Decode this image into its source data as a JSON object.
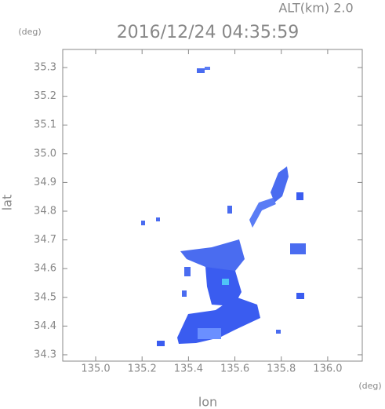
{
  "chart_data": {
    "type": "map",
    "title": "2016/12/24 04:35:59",
    "subtitle": "ALT(km) 2.0",
    "xlabel": "lon",
    "ylabel": "lat",
    "xunit": "(deg)",
    "yunit": "(deg)",
    "xlim": [
      134.858,
      136.149
    ],
    "ylim": [
      34.278,
      35.363
    ],
    "xticks": [
      {
        "value": 135,
        "label": "135.0"
      },
      135.2,
      135.4,
      135.6,
      135.8,
      {
        "value": 136,
        "label": "136.0"
      }
    ],
    "yticks": [
      34.3,
      34.4,
      34.5,
      34.6,
      34.7,
      34.8,
      34.9,
      {
        "value": 35,
        "label": "35.0"
      },
      35.1,
      35.2,
      35.3
    ]
  }
}
